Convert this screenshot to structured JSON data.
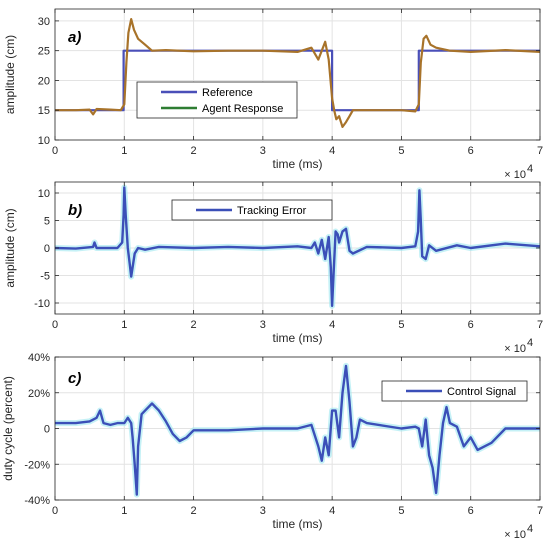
{
  "chart_data": [
    {
      "type": "line",
      "panel_label": "a)",
      "xlabel": "time (ms)",
      "ylabel": "amplitude (cm)",
      "x_multiplier": "× 10",
      "x_multiplier_exp": "4",
      "xlim": [
        0,
        7
      ],
      "ylim": [
        10,
        32
      ],
      "xticks": [
        "0",
        "1",
        "2",
        "3",
        "4",
        "5",
        "6",
        "7"
      ],
      "yticks": [
        "10",
        "15",
        "20",
        "25",
        "30"
      ],
      "ytick_values": [
        10,
        15,
        20,
        25,
        30
      ],
      "grid": true,
      "legend_position": "center",
      "series": [
        {
          "name": "Reference",
          "color": "#4a4fb8",
          "x": [
            0,
            0.99,
            0.99,
            4.0,
            4.0,
            5.25,
            5.25,
            7.0
          ],
          "y": [
            15,
            15,
            25,
            25,
            15,
            15,
            25,
            25
          ]
        },
        {
          "name": "Agent Response",
          "color": "#2e7d32",
          "draw_color": "#a8732a",
          "x": [
            0,
            0.3,
            0.5,
            0.55,
            0.6,
            0.8,
            0.95,
            1.0,
            1.03,
            1.06,
            1.1,
            1.14,
            1.2,
            1.3,
            1.4,
            1.6,
            2.0,
            2.5,
            3.0,
            3.5,
            3.7,
            3.8,
            3.9,
            3.95,
            4.0,
            4.03,
            4.06,
            4.1,
            4.15,
            4.2,
            4.25,
            4.3,
            4.5,
            5.0,
            5.2,
            5.25,
            5.28,
            5.32,
            5.36,
            5.42,
            5.5,
            5.7,
            6.0,
            6.5,
            7.0
          ],
          "y": [
            15.0,
            15.0,
            15.1,
            14.3,
            15.2,
            15.1,
            15.0,
            16.0,
            23.0,
            28.0,
            30.3,
            28.5,
            27.0,
            26.0,
            25.0,
            25.1,
            24.9,
            25.0,
            25.0,
            24.8,
            25.5,
            23.5,
            26.5,
            23.5,
            17.0,
            15.0,
            13.5,
            14.0,
            12.2,
            13.0,
            14.0,
            15.0,
            15.0,
            15.0,
            14.8,
            16.0,
            23.0,
            27.0,
            27.5,
            26.0,
            25.5,
            25.0,
            24.8,
            25.1,
            24.8
          ]
        }
      ]
    },
    {
      "type": "line",
      "panel_label": "b)",
      "xlabel": "time (ms)",
      "ylabel": "amplitude (cm)",
      "x_multiplier": "× 10",
      "x_multiplier_exp": "4",
      "xlim": [
        0,
        7
      ],
      "ylim": [
        -12,
        12
      ],
      "xticks": [
        "0",
        "1",
        "2",
        "3",
        "4",
        "5",
        "6",
        "7"
      ],
      "yticks": [
        "-10",
        "-5",
        "0",
        "5",
        "10"
      ],
      "ytick_values": [
        -10,
        -5,
        0,
        5,
        10
      ],
      "grid": true,
      "legend_position": "top-center",
      "series": [
        {
          "name": "Tracking Error",
          "color": "#3b4fb8",
          "x": [
            0,
            0.3,
            0.55,
            0.57,
            0.6,
            0.9,
            0.97,
            0.99,
            1.0,
            1.02,
            1.05,
            1.08,
            1.1,
            1.15,
            1.2,
            1.3,
            1.5,
            2.0,
            2.5,
            3.0,
            3.5,
            3.7,
            3.75,
            3.8,
            3.85,
            3.9,
            3.95,
            3.98,
            4.0,
            4.02,
            4.05,
            4.08,
            4.1,
            4.15,
            4.2,
            4.25,
            4.3,
            4.5,
            5.0,
            5.2,
            5.24,
            5.26,
            5.28,
            5.3,
            5.35,
            5.4,
            5.5,
            5.8,
            6.0,
            6.5,
            7.0
          ],
          "y": [
            0.0,
            -0.1,
            0.2,
            1.0,
            0.0,
            0.0,
            1.0,
            6.0,
            11.0,
            6.0,
            0.0,
            -3.0,
            -5.2,
            -1.0,
            0.0,
            -0.3,
            0.2,
            0.0,
            0.2,
            0.0,
            0.3,
            0.0,
            1.0,
            -1.0,
            1.5,
            -2.0,
            2.0,
            -3.5,
            -10.5,
            -5.0,
            3.0,
            2.5,
            1.0,
            3.0,
            3.5,
            -0.5,
            -1.0,
            0.2,
            0.0,
            0.3,
            3.0,
            10.5,
            5.0,
            -1.5,
            -2.0,
            0.5,
            -0.5,
            0.5,
            0.0,
            0.8,
            0.3
          ]
        }
      ]
    },
    {
      "type": "line",
      "panel_label": "c)",
      "xlabel": "time (ms)",
      "ylabel": "duty cycle (percent)",
      "x_multiplier": "× 10",
      "x_multiplier_exp": "4",
      "xlim": [
        0,
        7
      ],
      "ylim": [
        -40,
        40
      ],
      "xticks": [
        "0",
        "1",
        "2",
        "3",
        "4",
        "5",
        "6",
        "7"
      ],
      "yticks": [
        "-40%",
        "-20%",
        "0",
        "20%",
        "40%"
      ],
      "ytick_values": [
        -40,
        -20,
        0,
        20,
        40
      ],
      "grid": true,
      "legend_position": "top-right",
      "series": [
        {
          "name": "Control Signal",
          "color": "#3b4fb8",
          "x": [
            0,
            0.3,
            0.5,
            0.6,
            0.65,
            0.7,
            0.8,
            0.9,
            1.0,
            1.05,
            1.1,
            1.12,
            1.15,
            1.18,
            1.2,
            1.25,
            1.3,
            1.35,
            1.4,
            1.5,
            1.6,
            1.7,
            1.8,
            1.9,
            2.0,
            2.5,
            3.0,
            3.5,
            3.7,
            3.8,
            3.85,
            3.9,
            3.95,
            4.0,
            4.05,
            4.1,
            4.15,
            4.2,
            4.25,
            4.3,
            4.35,
            4.4,
            4.5,
            5.0,
            5.2,
            5.25,
            5.3,
            5.35,
            5.4,
            5.45,
            5.5,
            5.55,
            5.6,
            5.65,
            5.7,
            5.8,
            5.9,
            6.0,
            6.1,
            6.3,
            6.5,
            7.0
          ],
          "y": [
            3,
            3,
            4,
            6,
            10,
            3,
            2,
            3,
            3,
            6,
            3,
            -5,
            -20,
            -37,
            -10,
            8,
            10,
            12,
            14,
            10,
            4,
            -3,
            -7,
            -5,
            -1,
            -1,
            0,
            0,
            2,
            -10,
            -18,
            -5,
            -15,
            10,
            10,
            -5,
            20,
            35,
            15,
            -10,
            -5,
            5,
            3,
            0,
            1,
            0,
            -10,
            5,
            -15,
            -22,
            -36,
            -15,
            3,
            12,
            3,
            1,
            -10,
            -5,
            -12,
            -8,
            0,
            0
          ]
        }
      ]
    }
  ]
}
